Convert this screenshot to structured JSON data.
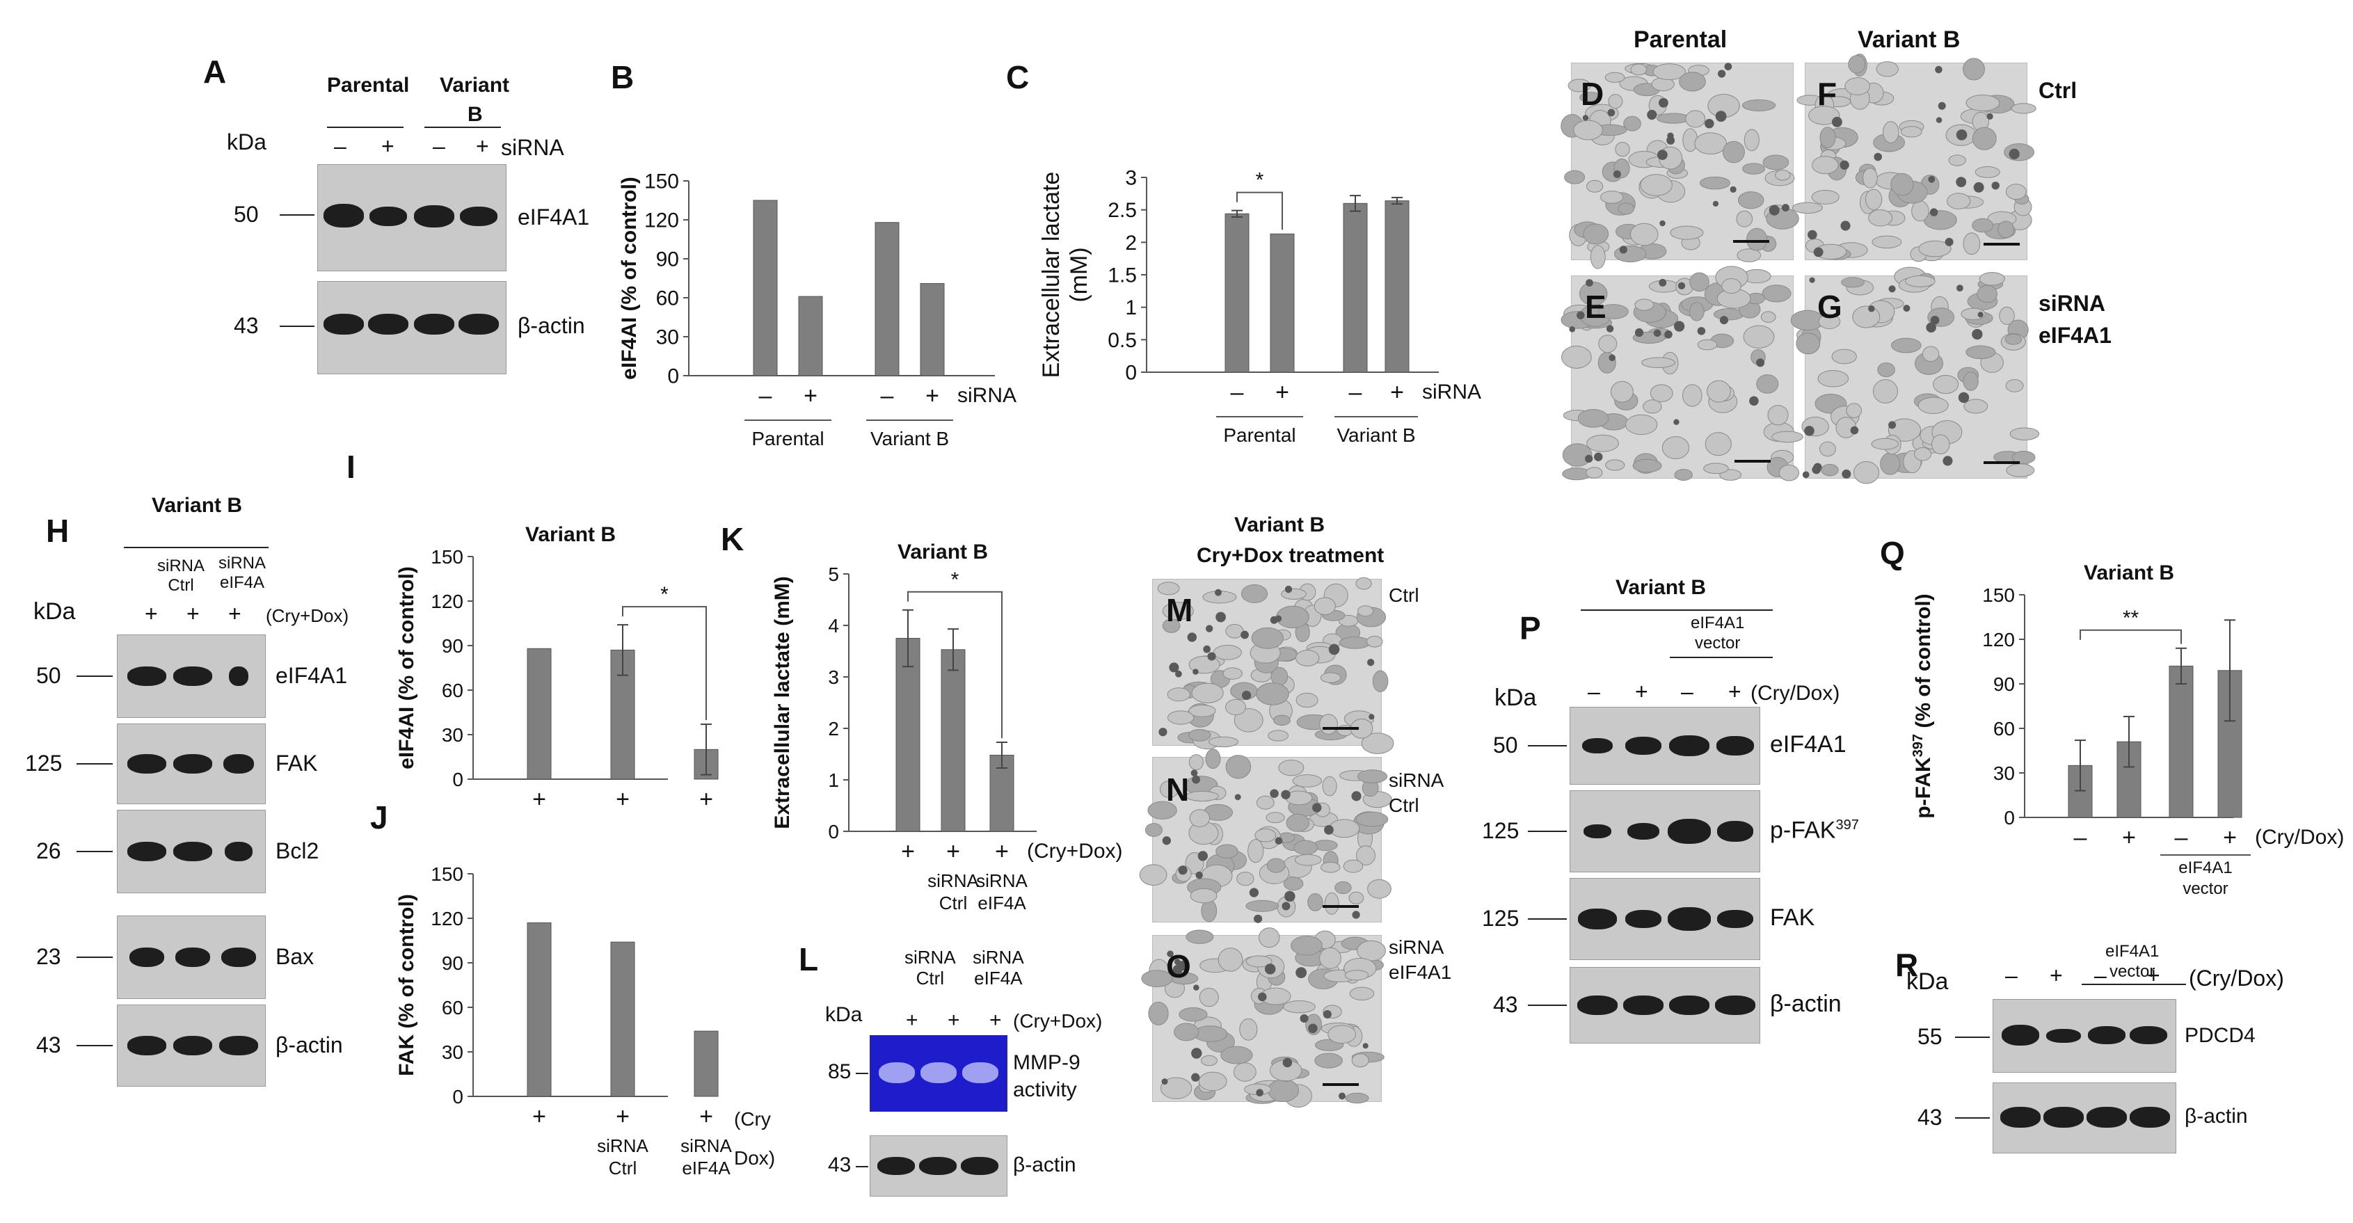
{
  "panel_letters": {
    "A": "A",
    "B": "B",
    "C": "C",
    "D": "D",
    "E": "E",
    "F": "F",
    "G": "G",
    "H": "H",
    "I": "I",
    "J": "J",
    "K": "K",
    "L": "L",
    "M": "M",
    "N": "N",
    "O": "O",
    "P": "P",
    "Q": "Q",
    "R": "R"
  },
  "common": {
    "kda": "kDa",
    "minus": "–",
    "plus": "+",
    "sirna": "siRNA",
    "cry_dox": "(Cry+Dox)",
    "cry_slash_dox": "(Cry/Dox)",
    "star": "*",
    "star2": "**",
    "beta_actin": "β-actin",
    "eif4a1": "eIF4A1",
    "fak": "FAK",
    "parental": "Parental",
    "variant_b": "Variant B",
    "ctrl": "Ctrl",
    "sirna_ctrl": "siRNA\nCtrl",
    "sirna_eif4a": "siRNA\neIF4A",
    "sirna_eif4a1": "siRNA\neIF4A1"
  },
  "panel_a": {
    "parental": "Parental",
    "variant": "Variant",
    "variant_b": "B",
    "kda_50": "50",
    "kda_43": "43",
    "band1": "eIF4A1",
    "band2": "β-actin"
  },
  "panel_d": {
    "parental": "Parental",
    "variant_b": "Variant B",
    "ctrl": "Ctrl",
    "sirna": "siRNA",
    "eif4a1": "eIF4A1"
  },
  "panel_h": {
    "title": "Variant B",
    "lane_labels": [
      "siRNA\nCtrl",
      "siRNA\neIF4A"
    ],
    "kda": [
      "50",
      "125",
      "26",
      "23",
      "43"
    ],
    "bands": [
      "eIF4A1",
      "FAK",
      "Bcl2",
      "Bax",
      "β-actin"
    ]
  },
  "panel_l": {
    "lane_labels": [
      "siRNA\nCtrl",
      "siRNA\neIF4A"
    ],
    "kda_85": "85",
    "kda_43": "43",
    "band1": "MMP-9\nactivity",
    "band2": "β-actin"
  },
  "panel_m": {
    "title": "Variant B",
    "subtitle": "Cry+Dox treatment",
    "m_label": "Ctrl",
    "n_label": "siRNA\nCtrl",
    "o_label": "siRNA\neIF4A1"
  },
  "panel_p": {
    "title": "Variant B",
    "vector": "eIF4A1\nvector",
    "kda": [
      "50",
      "125",
      "125",
      "43"
    ],
    "bands": [
      "eIF4A1",
      "p-FAK",
      "FAK",
      "β-actin"
    ],
    "sup": "397"
  },
  "panel_r": {
    "vector": "eIF4A1\nvector",
    "kda": [
      "55",
      "43"
    ],
    "bands": [
      "PDCD4",
      "β-actin"
    ]
  },
  "chart_data": [
    {
      "panel": "B",
      "type": "bar",
      "ylabel": "eIF4AI (% of control)",
      "ylim": [
        0,
        150
      ],
      "yticks": [
        0,
        30,
        60,
        90,
        120,
        150
      ],
      "categories": [
        "–",
        "+",
        "–",
        "+"
      ],
      "groups": [
        "Parental",
        "Variant B"
      ],
      "xlabel_suffix": "siRNA",
      "values": [
        135,
        61,
        118,
        71
      ]
    },
    {
      "panel": "C",
      "type": "bar",
      "ylabel": "Extracellular lactate (mM)",
      "ylim": [
        0,
        3
      ],
      "yticks": [
        0,
        0.5,
        1,
        1.5,
        2,
        2.5,
        3
      ],
      "ytick_labels": [
        "0",
        "0.5",
        "1",
        "1.5",
        "2",
        "2.5",
        "3"
      ],
      "categories": [
        "–",
        "+",
        "–",
        "+"
      ],
      "groups": [
        "Parental",
        "Variant B"
      ],
      "xlabel_suffix": "siRNA",
      "values": [
        2.44,
        2.13,
        2.6,
        2.64
      ],
      "errors": [
        0.05,
        0,
        0.12,
        0.05
      ],
      "significance": [
        {
          "from": 0,
          "to": 1,
          "label": "*"
        }
      ]
    },
    {
      "panel": "I",
      "type": "bar",
      "title": "Variant B",
      "ylabel": "eIF4AI (% of control)",
      "ylim": [
        0,
        150
      ],
      "yticks": [
        0,
        30,
        60,
        90,
        120,
        150
      ],
      "categories": [
        "+",
        "+",
        "+"
      ],
      "values": [
        88,
        87,
        20
      ],
      "errors": [
        0,
        17,
        17
      ],
      "significance": [
        {
          "from": 1,
          "to": 2,
          "label": "*"
        }
      ]
    },
    {
      "panel": "J",
      "type": "bar",
      "ylabel": "FAK (% of control)",
      "ylim": [
        0,
        150
      ],
      "yticks": [
        0,
        30,
        60,
        90,
        120,
        150
      ],
      "categories": [
        "+",
        "+",
        "+"
      ],
      "cat_labels": [
        "",
        "siRNA\nCtrl",
        "siRNA\neIF4A"
      ],
      "xlabel_suffix": "(Cry\nDox)",
      "values": [
        117,
        104,
        44
      ]
    },
    {
      "panel": "K",
      "type": "bar",
      "title": "Variant B",
      "ylabel": "Extracellular lactate (mM)",
      "ylim": [
        0,
        5
      ],
      "yticks": [
        0,
        1,
        2,
        3,
        4,
        5
      ],
      "categories": [
        "+",
        "+",
        "+"
      ],
      "cat_labels": [
        "",
        "siRNA\nCtrl",
        "siRNA\neIF4A"
      ],
      "xlabel_suffix": "(Cry+Dox)",
      "values": [
        3.75,
        3.53,
        1.48
      ],
      "errors": [
        0.55,
        0.4,
        0.25
      ],
      "significance": [
        {
          "from": 0,
          "to": 2,
          "label": "*"
        }
      ]
    },
    {
      "panel": "Q",
      "type": "bar",
      "title": "Variant B",
      "ylabel": "p-FAK397 (% of control)",
      "ylim": [
        0,
        150
      ],
      "yticks": [
        0,
        30,
        60,
        90,
        120,
        150
      ],
      "categories": [
        "–",
        "+",
        "–",
        "+"
      ],
      "group_label": "eIF4A1\nvector",
      "xlabel_suffix": "(Cry/Dox)",
      "values": [
        35,
        51,
        102,
        99
      ],
      "errors": [
        17,
        17,
        12,
        34
      ],
      "significance": [
        {
          "from": 0,
          "to": 2,
          "label": "**"
        }
      ]
    }
  ]
}
